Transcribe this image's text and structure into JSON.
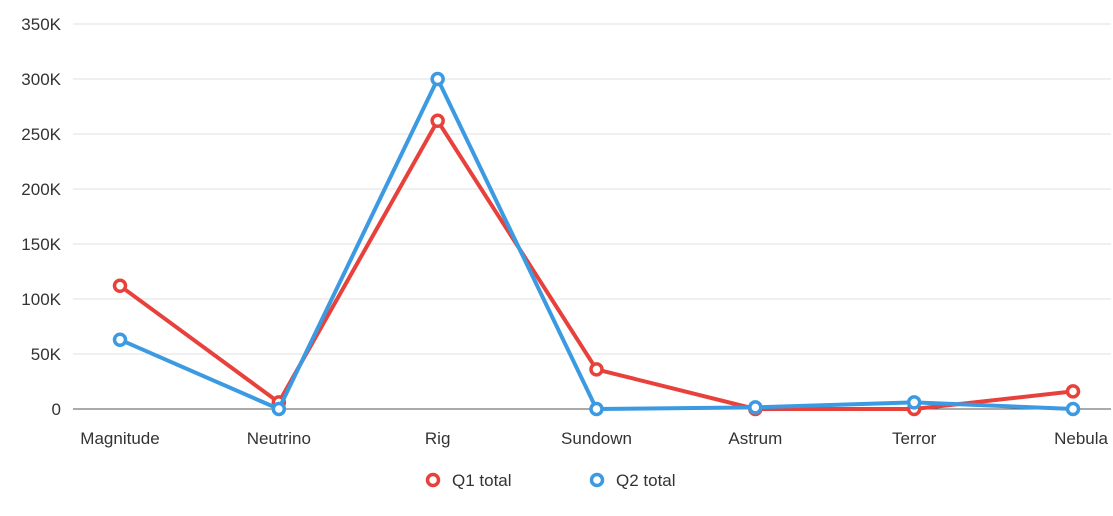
{
  "chart_data": {
    "type": "line",
    "categories": [
      "Magnitude",
      "Neutrino",
      "Rig",
      "Sundown",
      "Astrum",
      "Terror",
      "Nebula"
    ],
    "series": [
      {
        "name": "Q1 total",
        "color": "#e8413b",
        "values": [
          112000,
          6000,
          262000,
          36000,
          0,
          0,
          16000
        ]
      },
      {
        "name": "Q2 total",
        "color": "#3b9ae1",
        "values": [
          63000,
          0,
          300000,
          0,
          1500,
          6000,
          0
        ]
      }
    ],
    "y_ticks": [
      "0",
      "50K",
      "100K",
      "150K",
      "200K",
      "250K",
      "300K",
      "350K"
    ],
    "ylim": [
      0,
      350000
    ],
    "grid": true,
    "legend_position": "bottom-center"
  }
}
